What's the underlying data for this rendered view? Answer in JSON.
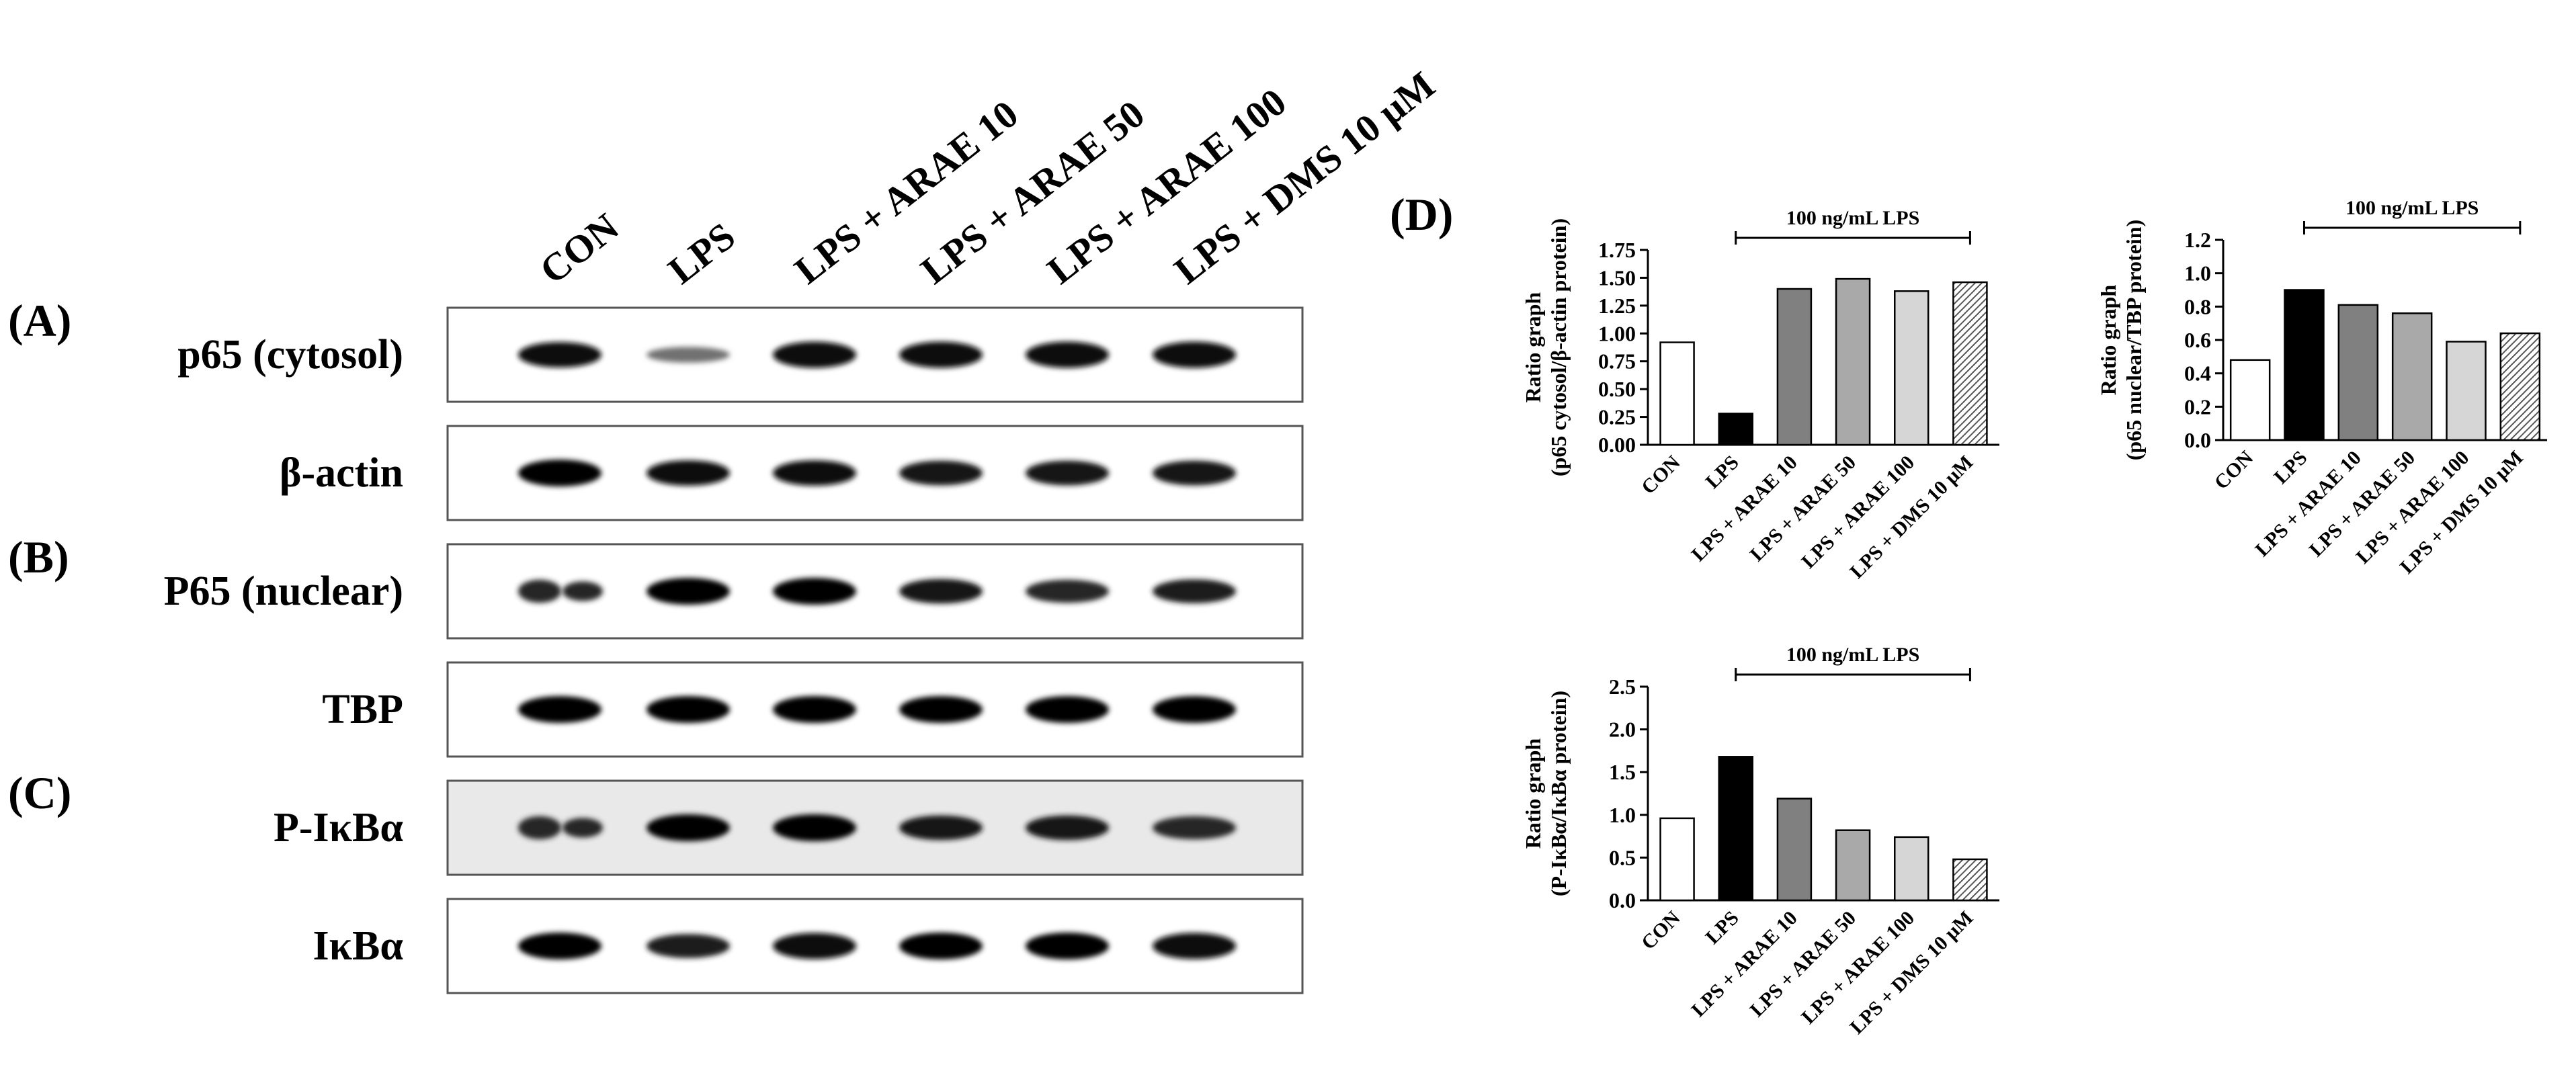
{
  "lanes": [
    "CON",
    "LPS",
    "LPS + ARAE 10",
    "LPS + ARAE 50",
    "LPS + ARAE 100",
    "LPS + DMS 10 μM"
  ],
  "panels": [
    {
      "tag": "(A)",
      "rows": [
        "p65 (cytosol)",
        "β-actin"
      ]
    },
    {
      "tag": "(B)",
      "rows": [
        "P65 (nuclear)",
        "TBP"
      ]
    },
    {
      "tag": "(C)",
      "rows": [
        "P-IκBα",
        "IκBα"
      ]
    }
  ],
  "blot": {
    "rows": [
      {
        "name": "p65 (cytosol)",
        "intensity": [
          0.9,
          0.25,
          0.95,
          0.95,
          0.95,
          0.95
        ],
        "gap": [
          0,
          0,
          0,
          0,
          0,
          0
        ],
        "background": "#ffffff"
      },
      {
        "name": "β-actin",
        "intensity": [
          1.0,
          0.9,
          0.9,
          0.85,
          0.85,
          0.85
        ],
        "gap": [
          0,
          0,
          0,
          0,
          0,
          0
        ],
        "background": "#ffffff"
      },
      {
        "name": "P65 (nuclear)",
        "intensity": [
          0.75,
          1.0,
          1.0,
          0.85,
          0.75,
          0.8
        ],
        "gap": [
          1,
          0,
          0,
          0,
          0,
          0
        ],
        "background": "#ffffff"
      },
      {
        "name": "TBP",
        "intensity": [
          1.0,
          1.0,
          1.0,
          1.0,
          1.0,
          1.0
        ],
        "gap": [
          0,
          0,
          0,
          0,
          0,
          0
        ],
        "background": "#ffffff"
      },
      {
        "name": "P-IκBα",
        "intensity": [
          0.75,
          1.0,
          1.0,
          0.85,
          0.85,
          0.75
        ],
        "gap": [
          1,
          0,
          0,
          0,
          0,
          0
        ],
        "background": "#e9e9e9"
      },
      {
        "name": "IκBα",
        "intensity": [
          1.0,
          0.8,
          0.95,
          1.0,
          1.0,
          0.95
        ],
        "gap": [
          0,
          0,
          0,
          0,
          0,
          0
        ],
        "background": "#ffffff"
      }
    ]
  },
  "panel_d_tag": "(D)",
  "bar_styles": {
    "fills": [
      "#ffffff",
      "#000000",
      "#808080",
      "#a9a9a9",
      "#d6d6d6",
      "hatch"
    ],
    "stroke": "#000000"
  },
  "chart_data": [
    {
      "type": "bar",
      "categories": [
        "CON",
        "LPS",
        "LPS + ARAE 10",
        "LPS + ARAE 50",
        "LPS + ARAE 100",
        "LPS + DMS 10 μM"
      ],
      "values": [
        0.92,
        0.28,
        1.4,
        1.49,
        1.38,
        1.46
      ],
      "ylim": [
        0,
        1.75
      ],
      "yticks": [
        "0.00",
        "0.25",
        "0.50",
        "0.75",
        "1.00",
        "1.25",
        "1.50",
        "1.75"
      ],
      "ylabel_line1": "Ratio graph",
      "ylabel_line2": "(p65 cytosol/β-actin protein)",
      "bracket_label": "100 ng/mL LPS",
      "grid": false
    },
    {
      "type": "bar",
      "categories": [
        "CON",
        "LPS",
        "LPS + ARAE 10",
        "LPS + ARAE 50",
        "LPS + ARAE 100",
        "LPS + DMS 10 μM"
      ],
      "values": [
        0.48,
        0.9,
        0.81,
        0.76,
        0.59,
        0.64
      ],
      "ylim": [
        0,
        1.2
      ],
      "yticks": [
        "0.0",
        "0.2",
        "0.4",
        "0.6",
        "0.8",
        "1.0",
        "1.2"
      ],
      "ylabel_line1": "Ratio graph",
      "ylabel_line2": "(p65 nuclear/TBP protein)",
      "bracket_label": "100 ng/mL LPS",
      "grid": false
    },
    {
      "type": "bar",
      "categories": [
        "CON",
        "LPS",
        "LPS + ARAE 10",
        "LPS + ARAE 50",
        "LPS + ARAE 100",
        "LPS + DMS 10 μM"
      ],
      "values": [
        0.96,
        1.68,
        1.19,
        0.82,
        0.74,
        0.48
      ],
      "ylim": [
        0,
        2.5
      ],
      "yticks": [
        "0.0",
        "0.5",
        "1.0",
        "1.5",
        "2.0",
        "2.5"
      ],
      "ylabel_line1": "Ratio graph",
      "ylabel_line2": "(P-IκBα/IκBα protein)",
      "bracket_label": "100 ng/mL LPS",
      "grid": false
    }
  ]
}
